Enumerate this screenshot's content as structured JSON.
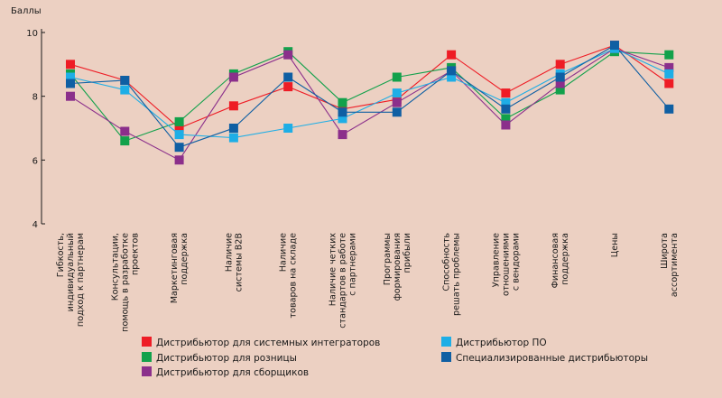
{
  "chart_data": {
    "type": "line",
    "ylabel": "Баллы",
    "ylim": [
      4,
      10
    ],
    "yticks": [
      4,
      6,
      8,
      10
    ],
    "grid": false,
    "legend_position": "bottom",
    "categories": [
      [
        "Гибкость,",
        "индивидуальный",
        "подход к партнерам"
      ],
      [
        "Консультации,",
        "помощь в разработке",
        "проектов"
      ],
      [
        "Маркетинговая",
        "поддержка"
      ],
      [
        "Наличие",
        "системы B2B"
      ],
      [
        "Наличие",
        "товаров на складе"
      ],
      [
        "Наличие четких",
        "стандартов в работе",
        "с партнерами"
      ],
      [
        "Программы",
        "формирования",
        "прибыли"
      ],
      [
        "Способность",
        "решать проблемы"
      ],
      [
        "Управление",
        "отношениями",
        "с вендорами"
      ],
      [
        "Финансовая",
        "поддержка"
      ],
      [
        "Цены"
      ],
      [
        "Широта",
        "ассортимента"
      ]
    ],
    "series": [
      {
        "name": "Дистрибьютор для системных интеграторов",
        "color": "#ee1c25",
        "values": [
          9.0,
          8.5,
          7.0,
          7.7,
          8.3,
          7.6,
          7.9,
          9.3,
          8.1,
          9.0,
          9.6,
          8.4
        ]
      },
      {
        "name": "Дистрибьютор для розницы",
        "color": "#12a14b",
        "values": [
          8.7,
          6.6,
          7.2,
          8.7,
          9.4,
          7.8,
          8.6,
          8.9,
          7.3,
          8.2,
          9.4,
          9.3
        ]
      },
      {
        "name": "Дистрибьютор для сборщиков",
        "color": "#8b2f8b",
        "values": [
          8.0,
          6.9,
          6.0,
          8.6,
          9.3,
          6.8,
          7.8,
          8.8,
          7.1,
          8.4,
          9.5,
          8.9
        ]
      },
      {
        "name": "Дистрибьютор ПО",
        "color": "#1eaee6",
        "values": [
          8.6,
          8.2,
          6.8,
          6.7,
          7.0,
          7.3,
          8.1,
          8.6,
          7.8,
          8.7,
          9.5,
          8.7
        ]
      },
      {
        "name": "Специализированные дистрибьюторы",
        "color": "#0f5fa3",
        "values": [
          8.4,
          8.5,
          6.4,
          7.0,
          8.6,
          7.5,
          7.5,
          8.8,
          7.6,
          8.6,
          9.6,
          7.6
        ]
      }
    ],
    "legend_order": [
      0,
      3,
      1,
      4,
      2
    ]
  }
}
